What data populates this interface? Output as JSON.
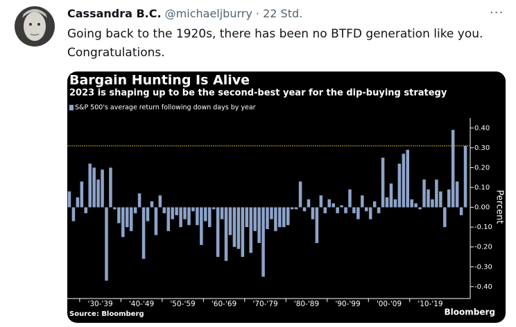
{
  "tweet": {
    "name": "Cassandra B.C.",
    "handle": "@michaeljburry",
    "time": "· 22 Std.",
    "text": "Going back to the 1920s, there has been no BTFD generation like you. Congratulations."
  },
  "chart_data": {
    "type": "bar",
    "title": "Bargain Hunting Is Alive",
    "subtitle": "2023 is shaping up to be the second-best year for the dip-buying strategy",
    "source": "Source: Bloomberg",
    "brand": "Bloomberg",
    "y_label": "Percent",
    "categories": [
      null,
      null,
      null,
      null,
      null,
      null,
      null,
      null,
      null,
      null,
      null,
      null,
      null,
      null,
      null,
      null,
      null,
      null,
      null,
      null,
      null,
      null,
      null,
      null,
      null,
      null,
      null,
      null,
      null,
      null,
      null,
      null,
      null,
      null,
      null,
      null,
      null,
      null,
      null,
      null,
      null,
      null,
      null,
      null,
      null,
      null,
      null,
      null,
      null,
      null,
      null,
      null,
      null,
      null,
      null,
      null,
      null,
      null,
      null,
      null,
      null,
      null,
      null,
      null,
      null,
      null,
      null,
      null,
      null,
      null,
      null,
      null,
      null,
      null,
      null,
      null,
      null,
      null,
      null,
      null,
      null,
      null,
      null,
      null,
      null,
      null,
      null,
      null,
      null,
      null,
      null,
      null,
      null,
      null,
      null,
      null,
      null
    ],
    "decade_labels": [
      "'30-'39",
      "'40-'49",
      "'50-'59",
      "'60-'69",
      "'70-'79",
      "'80-'89",
      "'90-'99",
      "'00-'09",
      "'10-'19"
    ],
    "series": [
      {
        "name": "S&P 500's average return following down days by year",
        "color": "#8ea3c9",
        "values": [
          0.08,
          -0.07,
          0.05,
          0.13,
          -0.03,
          0.22,
          0.2,
          0.14,
          0.19,
          -0.37,
          0.2,
          -0.01,
          -0.08,
          -0.15,
          -0.1,
          -0.12,
          -0.03,
          0.07,
          -0.26,
          -0.07,
          0.03,
          -0.14,
          0.06,
          -0.03,
          -0.12,
          -0.06,
          -0.04,
          -0.1,
          -0.06,
          -0.09,
          -0.02,
          -0.09,
          -0.19,
          -0.07,
          -0.1,
          -0.01,
          -0.25,
          -0.06,
          -0.27,
          -0.14,
          -0.2,
          -0.21,
          -0.25,
          -0.1,
          -0.23,
          -0.12,
          -0.18,
          -0.35,
          -0.11,
          -0.06,
          -0.12,
          -0.1,
          -0.1,
          -0.09,
          -0.01,
          -0.01,
          0.13,
          -0.02,
          0.04,
          -0.06,
          -0.18,
          0.06,
          -0.03,
          0.04,
          0.02,
          -0.03,
          0.01,
          -0.03,
          0.09,
          -0.03,
          -0.06,
          0.06,
          -0.02,
          -0.06,
          0.03,
          -0.03,
          0.25,
          0.05,
          0.12,
          0.04,
          0.22,
          0.27,
          0.29,
          0.04,
          0.02,
          -0.01,
          0.14,
          0.09,
          0.04,
          0.14,
          0.08,
          -0.1,
          0.09,
          0.39,
          0.13,
          -0.04,
          0.31
        ]
      }
    ],
    "reference_line": 0.31,
    "reference_color": "#c8b400",
    "ylim": [
      -0.46,
      0.45
    ],
    "yticks": [
      {
        "value": 0.4,
        "label": "0.40"
      },
      {
        "value": 0.3,
        "label": "0.30"
      },
      {
        "value": 0.2,
        "label": "0.20"
      },
      {
        "value": 0.1,
        "label": "0.10"
      },
      {
        "value": 0,
        "label": "0.00"
      },
      {
        "value": -0.1,
        "label": "-0.10"
      },
      {
        "value": -0.2,
        "label": "-0.20"
      },
      {
        "value": -0.3,
        "label": "-0.30"
      },
      {
        "value": -0.4,
        "label": "-0.40"
      }
    ]
  }
}
